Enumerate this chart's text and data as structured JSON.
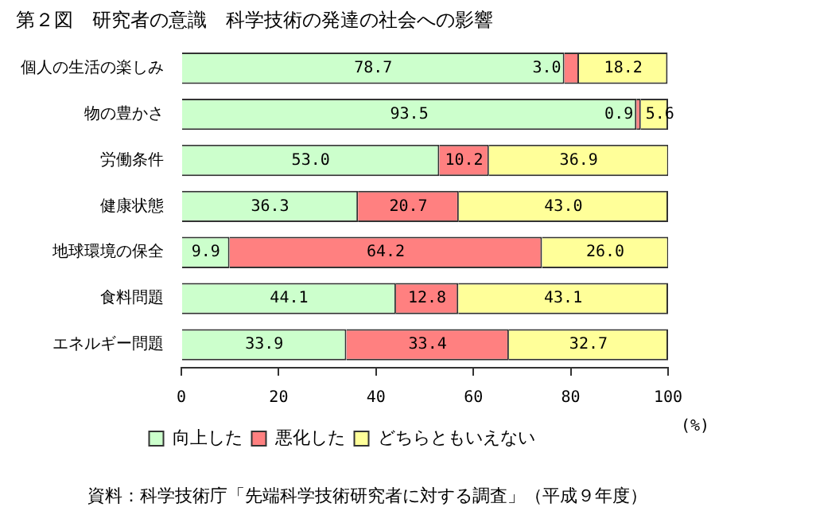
{
  "chart_data": {
    "type": "bar",
    "orientation": "horizontal",
    "stacked": true,
    "title": "第２図　研究者の意識　科学技術の発達の社会への影響",
    "xlabel": "(%)",
    "categories": [
      "個人の生活の楽しみ",
      "物の豊かさ",
      "労働条件",
      "健康状態",
      "地球環境の保全",
      "食料問題",
      "エネルギー問題"
    ],
    "series": [
      {
        "name": "向上した",
        "color": "#ccffcc",
        "values": [
          78.7,
          93.5,
          53.0,
          36.3,
          9.9,
          44.1,
          33.9
        ],
        "value_labels": [
          "78.7",
          "93.5",
          "53.0",
          "36.3",
          "9.9",
          "44.1",
          "33.9"
        ]
      },
      {
        "name": "悪化した",
        "color": "#ff8080",
        "values": [
          3.0,
          0.9,
          10.2,
          20.7,
          64.2,
          12.8,
          33.4
        ],
        "value_labels": [
          "3.0",
          "0.9",
          "10.2",
          "20.7",
          "64.2",
          "12.8",
          "33.4"
        ]
      },
      {
        "name": "どちらともいえない",
        "color": "#ffff99",
        "values": [
          18.2,
          5.6,
          36.9,
          43.0,
          26.0,
          43.1,
          32.7
        ],
        "value_labels": [
          "18.2",
          "5.6",
          "36.9",
          "43.0",
          "26.0",
          "43.1",
          "32.7"
        ]
      }
    ],
    "xlim": [
      0,
      100
    ],
    "xticks": [
      0,
      20,
      40,
      60,
      80,
      100
    ],
    "grid": false,
    "legend": "bottom",
    "annotations": [
      "資料：科学技術庁「先端科学技術研究者に対する調査」（平成９年度）"
    ]
  }
}
